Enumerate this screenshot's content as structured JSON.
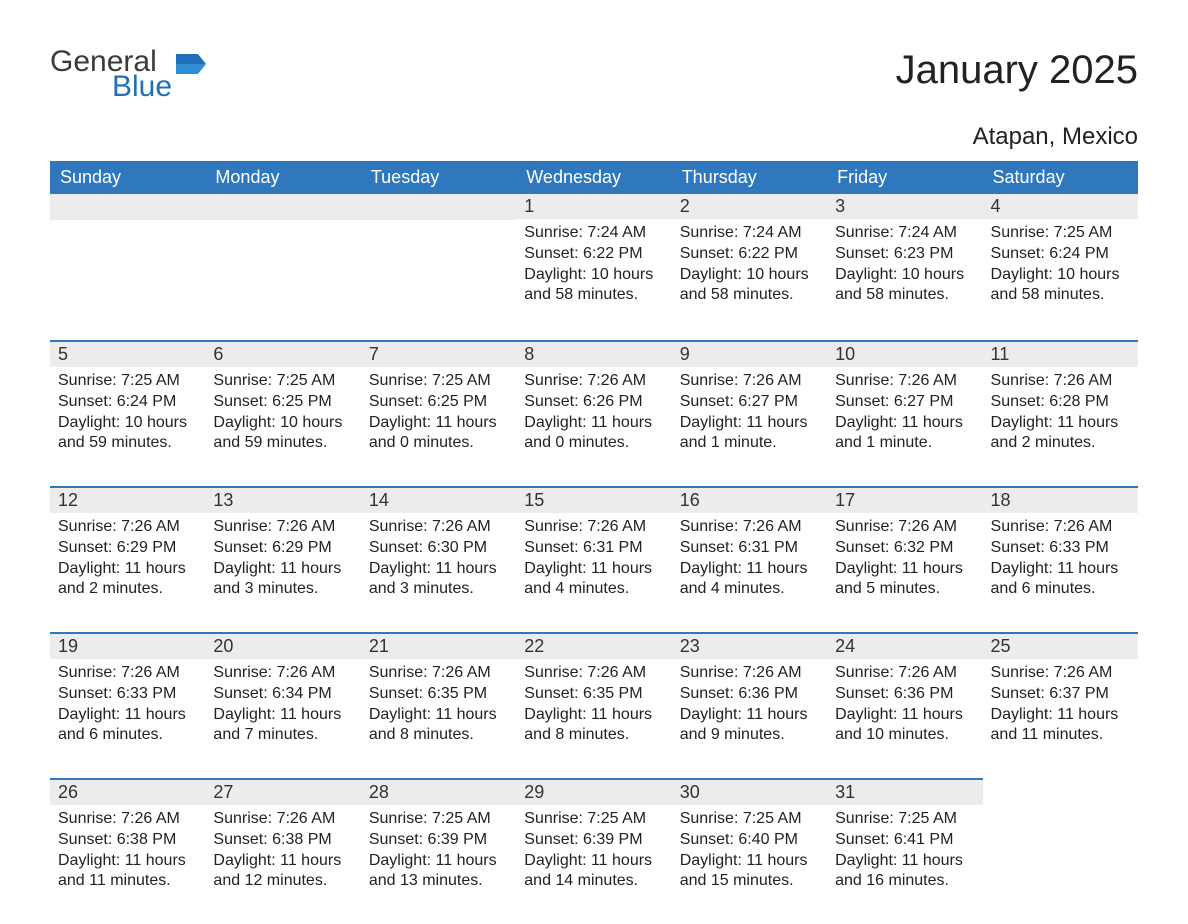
{
  "logo": {
    "general": "General",
    "blue": "Blue",
    "flag_color": "#1f70b8"
  },
  "title": "January 2025",
  "location": "Atapan, Mexico",
  "colors": {
    "header_bg": "#2f78be",
    "header_text": "#ffffff",
    "daybar_bg": "#ececec",
    "daybar_border": "#2f78be",
    "body_text": "#222222",
    "logo_gray": "#3a3a3a",
    "logo_blue": "#1f70b8",
    "background": "#ffffff"
  },
  "typography": {
    "title_fontsize": 40,
    "location_fontsize": 24,
    "header_fontsize": 18,
    "daynum_fontsize": 18,
    "body_fontsize": 16
  },
  "weekdays": [
    "Sunday",
    "Monday",
    "Tuesday",
    "Wednesday",
    "Thursday",
    "Friday",
    "Saturday"
  ],
  "calendar": {
    "type": "table",
    "rows": [
      [
        null,
        null,
        null,
        {
          "n": "1",
          "sunrise": "Sunrise: 7:24 AM",
          "sunset": "Sunset: 6:22 PM",
          "day1": "Daylight: 10 hours",
          "day2": "and 58 minutes."
        },
        {
          "n": "2",
          "sunrise": "Sunrise: 7:24 AM",
          "sunset": "Sunset: 6:22 PM",
          "day1": "Daylight: 10 hours",
          "day2": "and 58 minutes."
        },
        {
          "n": "3",
          "sunrise": "Sunrise: 7:24 AM",
          "sunset": "Sunset: 6:23 PM",
          "day1": "Daylight: 10 hours",
          "day2": "and 58 minutes."
        },
        {
          "n": "4",
          "sunrise": "Sunrise: 7:25 AM",
          "sunset": "Sunset: 6:24 PM",
          "day1": "Daylight: 10 hours",
          "day2": "and 58 minutes."
        }
      ],
      [
        {
          "n": "5",
          "sunrise": "Sunrise: 7:25 AM",
          "sunset": "Sunset: 6:24 PM",
          "day1": "Daylight: 10 hours",
          "day2": "and 59 minutes."
        },
        {
          "n": "6",
          "sunrise": "Sunrise: 7:25 AM",
          "sunset": "Sunset: 6:25 PM",
          "day1": "Daylight: 10 hours",
          "day2": "and 59 minutes."
        },
        {
          "n": "7",
          "sunrise": "Sunrise: 7:25 AM",
          "sunset": "Sunset: 6:25 PM",
          "day1": "Daylight: 11 hours",
          "day2": "and 0 minutes."
        },
        {
          "n": "8",
          "sunrise": "Sunrise: 7:26 AM",
          "sunset": "Sunset: 6:26 PM",
          "day1": "Daylight: 11 hours",
          "day2": "and 0 minutes."
        },
        {
          "n": "9",
          "sunrise": "Sunrise: 7:26 AM",
          "sunset": "Sunset: 6:27 PM",
          "day1": "Daylight: 11 hours",
          "day2": "and 1 minute."
        },
        {
          "n": "10",
          "sunrise": "Sunrise: 7:26 AM",
          "sunset": "Sunset: 6:27 PM",
          "day1": "Daylight: 11 hours",
          "day2": "and 1 minute."
        },
        {
          "n": "11",
          "sunrise": "Sunrise: 7:26 AM",
          "sunset": "Sunset: 6:28 PM",
          "day1": "Daylight: 11 hours",
          "day2": "and 2 minutes."
        }
      ],
      [
        {
          "n": "12",
          "sunrise": "Sunrise: 7:26 AM",
          "sunset": "Sunset: 6:29 PM",
          "day1": "Daylight: 11 hours",
          "day2": "and 2 minutes."
        },
        {
          "n": "13",
          "sunrise": "Sunrise: 7:26 AM",
          "sunset": "Sunset: 6:29 PM",
          "day1": "Daylight: 11 hours",
          "day2": "and 3 minutes."
        },
        {
          "n": "14",
          "sunrise": "Sunrise: 7:26 AM",
          "sunset": "Sunset: 6:30 PM",
          "day1": "Daylight: 11 hours",
          "day2": "and 3 minutes."
        },
        {
          "n": "15",
          "sunrise": "Sunrise: 7:26 AM",
          "sunset": "Sunset: 6:31 PM",
          "day1": "Daylight: 11 hours",
          "day2": "and 4 minutes."
        },
        {
          "n": "16",
          "sunrise": "Sunrise: 7:26 AM",
          "sunset": "Sunset: 6:31 PM",
          "day1": "Daylight: 11 hours",
          "day2": "and 4 minutes."
        },
        {
          "n": "17",
          "sunrise": "Sunrise: 7:26 AM",
          "sunset": "Sunset: 6:32 PM",
          "day1": "Daylight: 11 hours",
          "day2": "and 5 minutes."
        },
        {
          "n": "18",
          "sunrise": "Sunrise: 7:26 AM",
          "sunset": "Sunset: 6:33 PM",
          "day1": "Daylight: 11 hours",
          "day2": "and 6 minutes."
        }
      ],
      [
        {
          "n": "19",
          "sunrise": "Sunrise: 7:26 AM",
          "sunset": "Sunset: 6:33 PM",
          "day1": "Daylight: 11 hours",
          "day2": "and 6 minutes."
        },
        {
          "n": "20",
          "sunrise": "Sunrise: 7:26 AM",
          "sunset": "Sunset: 6:34 PM",
          "day1": "Daylight: 11 hours",
          "day2": "and 7 minutes."
        },
        {
          "n": "21",
          "sunrise": "Sunrise: 7:26 AM",
          "sunset": "Sunset: 6:35 PM",
          "day1": "Daylight: 11 hours",
          "day2": "and 8 minutes."
        },
        {
          "n": "22",
          "sunrise": "Sunrise: 7:26 AM",
          "sunset": "Sunset: 6:35 PM",
          "day1": "Daylight: 11 hours",
          "day2": "and 8 minutes."
        },
        {
          "n": "23",
          "sunrise": "Sunrise: 7:26 AM",
          "sunset": "Sunset: 6:36 PM",
          "day1": "Daylight: 11 hours",
          "day2": "and 9 minutes."
        },
        {
          "n": "24",
          "sunrise": "Sunrise: 7:26 AM",
          "sunset": "Sunset: 6:36 PM",
          "day1": "Daylight: 11 hours",
          "day2": "and 10 minutes."
        },
        {
          "n": "25",
          "sunrise": "Sunrise: 7:26 AM",
          "sunset": "Sunset: 6:37 PM",
          "day1": "Daylight: 11 hours",
          "day2": "and 11 minutes."
        }
      ],
      [
        {
          "n": "26",
          "sunrise": "Sunrise: 7:26 AM",
          "sunset": "Sunset: 6:38 PM",
          "day1": "Daylight: 11 hours",
          "day2": "and 11 minutes."
        },
        {
          "n": "27",
          "sunrise": "Sunrise: 7:26 AM",
          "sunset": "Sunset: 6:38 PM",
          "day1": "Daylight: 11 hours",
          "day2": "and 12 minutes."
        },
        {
          "n": "28",
          "sunrise": "Sunrise: 7:25 AM",
          "sunset": "Sunset: 6:39 PM",
          "day1": "Daylight: 11 hours",
          "day2": "and 13 minutes."
        },
        {
          "n": "29",
          "sunrise": "Sunrise: 7:25 AM",
          "sunset": "Sunset: 6:39 PM",
          "day1": "Daylight: 11 hours",
          "day2": "and 14 minutes."
        },
        {
          "n": "30",
          "sunrise": "Sunrise: 7:25 AM",
          "sunset": "Sunset: 6:40 PM",
          "day1": "Daylight: 11 hours",
          "day2": "and 15 minutes."
        },
        {
          "n": "31",
          "sunrise": "Sunrise: 7:25 AM",
          "sunset": "Sunset: 6:41 PM",
          "day1": "Daylight: 11 hours",
          "day2": "and 16 minutes."
        },
        null
      ]
    ]
  }
}
